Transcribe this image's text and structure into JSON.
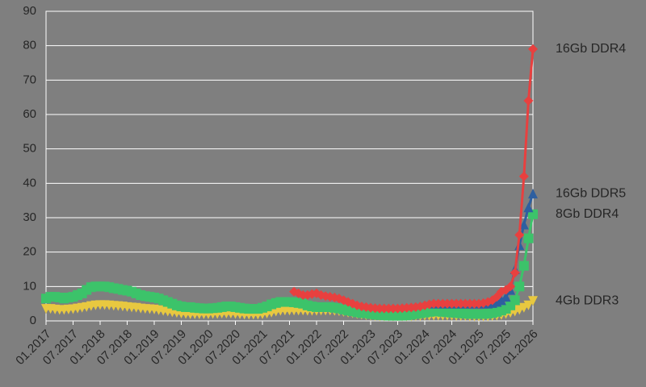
{
  "chart_data": {
    "type": "line",
    "categories": [
      "01.2017",
      null,
      null,
      null,
      null,
      null,
      "07.2017",
      null,
      null,
      null,
      null,
      null,
      "01.2018",
      null,
      null,
      null,
      null,
      null,
      "07.2018",
      null,
      null,
      null,
      null,
      null,
      "01.2019",
      null,
      null,
      null,
      null,
      null,
      "07.2019",
      null,
      null,
      null,
      null,
      null,
      "01.2020",
      null,
      null,
      null,
      null,
      null,
      "07.2020",
      null,
      null,
      null,
      null,
      null,
      "01.2021",
      null,
      null,
      null,
      null,
      null,
      "07.2021",
      null,
      null,
      null,
      null,
      null,
      "01.2022",
      null,
      null,
      null,
      null,
      null,
      "07.2022",
      null,
      null,
      null,
      null,
      null,
      "01.2023",
      null,
      null,
      null,
      null,
      null,
      "07.2023",
      null,
      null,
      null,
      null,
      null,
      "01.2024",
      null,
      null,
      null,
      null,
      null,
      "07.2024",
      null,
      null,
      null,
      null,
      null,
      "01.2025",
      null,
      null,
      null,
      null,
      null,
      "07.2025",
      null,
      null,
      null,
      null,
      null,
      "01.2026"
    ],
    "series": [
      {
        "name": "16Gb DDR4",
        "color": "#e8403f",
        "marker": "diamond",
        "values": [
          null,
          null,
          null,
          null,
          null,
          null,
          null,
          null,
          null,
          null,
          null,
          null,
          null,
          null,
          null,
          null,
          null,
          null,
          null,
          null,
          null,
          null,
          null,
          null,
          null,
          null,
          null,
          null,
          null,
          null,
          null,
          null,
          null,
          null,
          null,
          null,
          null,
          null,
          null,
          null,
          null,
          null,
          null,
          null,
          null,
          null,
          null,
          null,
          null,
          null,
          null,
          null,
          null,
          null,
          null,
          8.5,
          8,
          7.5,
          7.5,
          7.8,
          8,
          7.5,
          7.2,
          7,
          6.8,
          6.5,
          6,
          5.5,
          5,
          4.5,
          4.2,
          4,
          3.8,
          3.7,
          3.6,
          3.6,
          3.6,
          3.6,
          3.6,
          3.7,
          3.8,
          3.9,
          4,
          4.2,
          4.5,
          4.8,
          5,
          5,
          5,
          5,
          5,
          5,
          5,
          5,
          5,
          5,
          5,
          5.2,
          5.5,
          6,
          7,
          8.5,
          9,
          10,
          14,
          25,
          42,
          64,
          79
        ]
      },
      {
        "name": "16Gb DDR5",
        "color": "#2e5fa0",
        "marker": "triangle",
        "values": [
          null,
          null,
          null,
          null,
          null,
          null,
          null,
          null,
          null,
          null,
          null,
          null,
          null,
          null,
          null,
          null,
          null,
          null,
          null,
          null,
          null,
          null,
          null,
          null,
          null,
          null,
          null,
          null,
          null,
          null,
          null,
          null,
          null,
          null,
          null,
          null,
          null,
          null,
          null,
          null,
          null,
          null,
          null,
          null,
          null,
          null,
          null,
          null,
          null,
          null,
          null,
          null,
          null,
          null,
          null,
          null,
          null,
          null,
          null,
          null,
          null,
          null,
          null,
          null,
          null,
          null,
          null,
          null,
          null,
          null,
          null,
          null,
          null,
          null,
          null,
          null,
          null,
          null,
          null,
          null,
          null,
          null,
          null,
          null,
          null,
          null,
          5,
          5,
          5,
          5,
          5,
          5,
          5,
          5,
          5,
          5,
          5,
          5,
          5,
          5.2,
          5.5,
          6,
          7,
          9,
          15,
          22,
          28,
          33,
          37
        ]
      },
      {
        "name": "8Gb DDR4",
        "color": "#3cc36a",
        "marker": "square",
        "values": [
          6.5,
          7,
          7,
          6.8,
          6.5,
          6.8,
          7,
          7.5,
          8,
          9,
          9.8,
          10,
          10,
          10,
          9.8,
          9.5,
          9.3,
          9,
          8.8,
          8.5,
          8,
          7.5,
          7.2,
          7,
          6.8,
          6.5,
          6,
          5.5,
          5,
          4.5,
          4.2,
          4,
          4,
          3.8,
          3.7,
          3.6,
          3.6,
          3.7,
          3.8,
          4,
          4.2,
          4.2,
          4,
          3.8,
          3.6,
          3.5,
          3.5,
          3.5,
          3.8,
          4.2,
          4.8,
          5.2,
          5.5,
          5.5,
          5.5,
          5.4,
          5.2,
          5,
          4.5,
          4.2,
          4,
          4,
          4,
          4,
          3.8,
          3.6,
          3.3,
          3,
          2.8,
          2.5,
          2.3,
          2.2,
          2,
          1.8,
          1.7,
          1.6,
          1.5,
          1.5,
          1.5,
          1.5,
          1.6,
          1.8,
          2,
          2.2,
          2.4,
          2.6,
          2.7,
          2.7,
          2.6,
          2.5,
          2.4,
          2.3,
          2.2,
          2.1,
          2,
          2,
          2,
          2,
          2.1,
          2.3,
          2.6,
          3,
          3.5,
          4.5,
          6,
          10,
          16,
          24,
          31
        ]
      },
      {
        "name": "4Gb DDR3",
        "color": "#e8c840",
        "marker": "down-triangle",
        "values": [
          3.5,
          3.5,
          3.3,
          3.2,
          3.2,
          3.3,
          3.4,
          3.6,
          3.8,
          4,
          4.3,
          4.5,
          4.6,
          4.6,
          4.5,
          4.4,
          4.3,
          4.2,
          4,
          3.9,
          3.8,
          3.6,
          3.5,
          3.4,
          3.3,
          3.1,
          2.9,
          2.7,
          2.5,
          2.3,
          2.1,
          2,
          1.9,
          1.9,
          1.9,
          1.9,
          1.9,
          2,
          2,
          2.1,
          2.1,
          2.1,
          2,
          1.9,
          1.8,
          1.8,
          1.8,
          1.8,
          1.9,
          2.1,
          2.4,
          2.7,
          2.9,
          3,
          3,
          3,
          3,
          3,
          2.9,
          2.9,
          2.9,
          3,
          3,
          3,
          2.9,
          2.8,
          2.6,
          2.4,
          2.2,
          2,
          1.8,
          1.6,
          1.5,
          1.4,
          1.3,
          1.3,
          1.3,
          1.3,
          1.3,
          1.3,
          1.3,
          1.3,
          1.4,
          1.4,
          1.5,
          1.5,
          1.5,
          1.5,
          1.5,
          1.5,
          1.5,
          1.4,
          1.4,
          1.4,
          1.3,
          1.3,
          1.3,
          1.3,
          1.3,
          1.4,
          1.5,
          1.7,
          2,
          2.3,
          2.7,
          3.2,
          3.8,
          4.5,
          5.8
        ]
      }
    ],
    "ylim": [
      0,
      90
    ],
    "yticks": [
      0,
      10,
      20,
      30,
      40,
      50,
      60,
      70,
      80,
      90
    ],
    "grid": true
  }
}
